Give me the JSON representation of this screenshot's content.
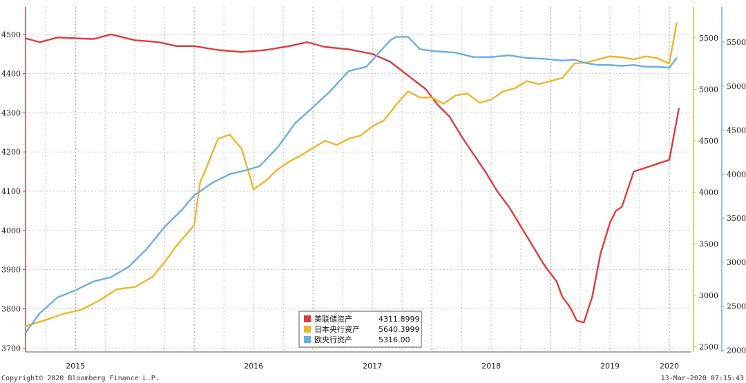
{
  "footer": {
    "copyright": "Copyright© 2020 Bloomberg Finance L.P.",
    "timestamp": "13-Mar-2020 07:15:43"
  },
  "chart_data": {
    "type": "line",
    "x_range": [
      2014.58,
      2020.18
    ],
    "x_ticks": [
      "2015",
      "2016",
      "2017",
      "2018",
      "2019",
      "2020"
    ],
    "axes": {
      "left": {
        "min": 3690,
        "max": 4570,
        "ticks": [
          3700,
          3800,
          3900,
          4000,
          4100,
          4200,
          4300,
          4400,
          4500
        ],
        "color": "#e03a3a"
      },
      "right1": {
        "min": 2450,
        "max": 5800,
        "ticks": [
          2500,
          3000,
          3500,
          4000,
          4500,
          5000,
          5500
        ],
        "color": "#f0b429"
      },
      "right2": {
        "min": 1980,
        "max": 5900,
        "ticks": [
          2000,
          2500,
          3000,
          3500,
          4000,
          4500,
          5000,
          5500
        ],
        "color": "#6aaee0"
      }
    },
    "grid": true,
    "legend_position": "bottom-center",
    "legend": [
      {
        "label": "美联储资产",
        "value": "4311.8999",
        "color": "#e03a3a"
      },
      {
        "label": "日本央行资产",
        "value": "5640.3999",
        "color": "#f0b429"
      },
      {
        "label": "欧央行资产",
        "value": "5316.00",
        "color": "#6aaee0"
      }
    ],
    "series": [
      {
        "name": "美联储资产",
        "axis": "left",
        "color": "#e03a3a",
        "x": [
          2014.58,
          2014.7,
          2014.85,
          2015.0,
          2015.15,
          2015.3,
          2015.5,
          2015.7,
          2015.85,
          2016.0,
          2016.2,
          2016.4,
          2016.6,
          2016.8,
          2016.95,
          2017.1,
          2017.3,
          2017.5,
          2017.65,
          2017.8,
          2017.95,
          2018.05,
          2018.15,
          2018.25,
          2018.35,
          2018.45,
          2018.55,
          2018.65,
          2018.75,
          2018.85,
          2018.95,
          2019.05,
          2019.1,
          2019.15,
          2019.18,
          2019.22,
          2019.28,
          2019.35,
          2019.42,
          2019.5,
          2019.55,
          2019.6,
          2019.7,
          2019.8,
          2019.9,
          2020.0,
          2020.08
        ],
        "y": [
          4490,
          4480,
          4492,
          4490,
          4488,
          4500,
          4485,
          4480,
          4470,
          4470,
          4460,
          4455,
          4460,
          4470,
          4480,
          4468,
          4462,
          4450,
          4430,
          4395,
          4360,
          4320,
          4290,
          4240,
          4195,
          4150,
          4100,
          4060,
          4010,
          3960,
          3910,
          3870,
          3830,
          3810,
          3795,
          3770,
          3765,
          3830,
          3940,
          4020,
          4050,
          4060,
          4150,
          4160,
          4170,
          4180,
          4310
        ]
      },
      {
        "name": "日本央行资产",
        "axis": "right1",
        "color": "#f0b429",
        "x": [
          2014.58,
          2014.75,
          2014.9,
          2015.05,
          2015.2,
          2015.35,
          2015.5,
          2015.65,
          2015.75,
          2015.85,
          2016.0,
          2016.05,
          2016.1,
          2016.2,
          2016.3,
          2016.4,
          2016.5,
          2016.6,
          2016.7,
          2016.8,
          2016.9,
          2017.0,
          2017.1,
          2017.2,
          2017.3,
          2017.4,
          2017.5,
          2017.6,
          2017.7,
          2017.8,
          2017.9,
          2018.0,
          2018.1,
          2018.2,
          2018.3,
          2018.4,
          2018.5,
          2018.6,
          2018.7,
          2018.8,
          2018.9,
          2019.0,
          2019.1,
          2019.2,
          2019.3,
          2019.4,
          2019.5,
          2019.6,
          2019.7,
          2019.8,
          2019.9,
          2020.0,
          2020.06
        ],
        "y": [
          2700,
          2760,
          2820,
          2860,
          2950,
          3060,
          3080,
          3180,
          3320,
          3480,
          3680,
          4100,
          4230,
          4520,
          4560,
          4420,
          4030,
          4110,
          4220,
          4300,
          4360,
          4430,
          4500,
          4460,
          4520,
          4550,
          4640,
          4700,
          4850,
          4980,
          4920,
          4920,
          4860,
          4940,
          4960,
          4870,
          4900,
          4980,
          5010,
          5080,
          5050,
          5080,
          5110,
          5250,
          5260,
          5290,
          5320,
          5310,
          5290,
          5320,
          5300,
          5250,
          5640
        ]
      },
      {
        "name": "欧央行资产",
        "axis": "right2",
        "color": "#6aaee0",
        "x": [
          2014.58,
          2014.7,
          2014.85,
          2015.0,
          2015.15,
          2015.3,
          2015.45,
          2015.6,
          2015.75,
          2015.9,
          2016.0,
          2016.15,
          2016.3,
          2016.45,
          2016.55,
          2016.7,
          2016.85,
          2017.0,
          2017.15,
          2017.3,
          2017.45,
          2017.55,
          2017.65,
          2017.7,
          2017.8,
          2017.9,
          2018.0,
          2018.1,
          2018.2,
          2018.35,
          2018.5,
          2018.65,
          2018.8,
          2018.95,
          2019.1,
          2019.2,
          2019.3,
          2019.4,
          2019.5,
          2019.6,
          2019.7,
          2019.8,
          2019.9,
          2020.0,
          2020.06
        ],
        "y": [
          2200,
          2420,
          2600,
          2680,
          2780,
          2830,
          2950,
          3150,
          3400,
          3600,
          3760,
          3900,
          4000,
          4050,
          4090,
          4300,
          4580,
          4760,
          4950,
          5170,
          5220,
          5370,
          5520,
          5560,
          5560,
          5420,
          5400,
          5390,
          5380,
          5330,
          5330,
          5350,
          5320,
          5310,
          5290,
          5300,
          5260,
          5240,
          5240,
          5230,
          5240,
          5220,
          5220,
          5210,
          5316
        ]
      }
    ]
  }
}
